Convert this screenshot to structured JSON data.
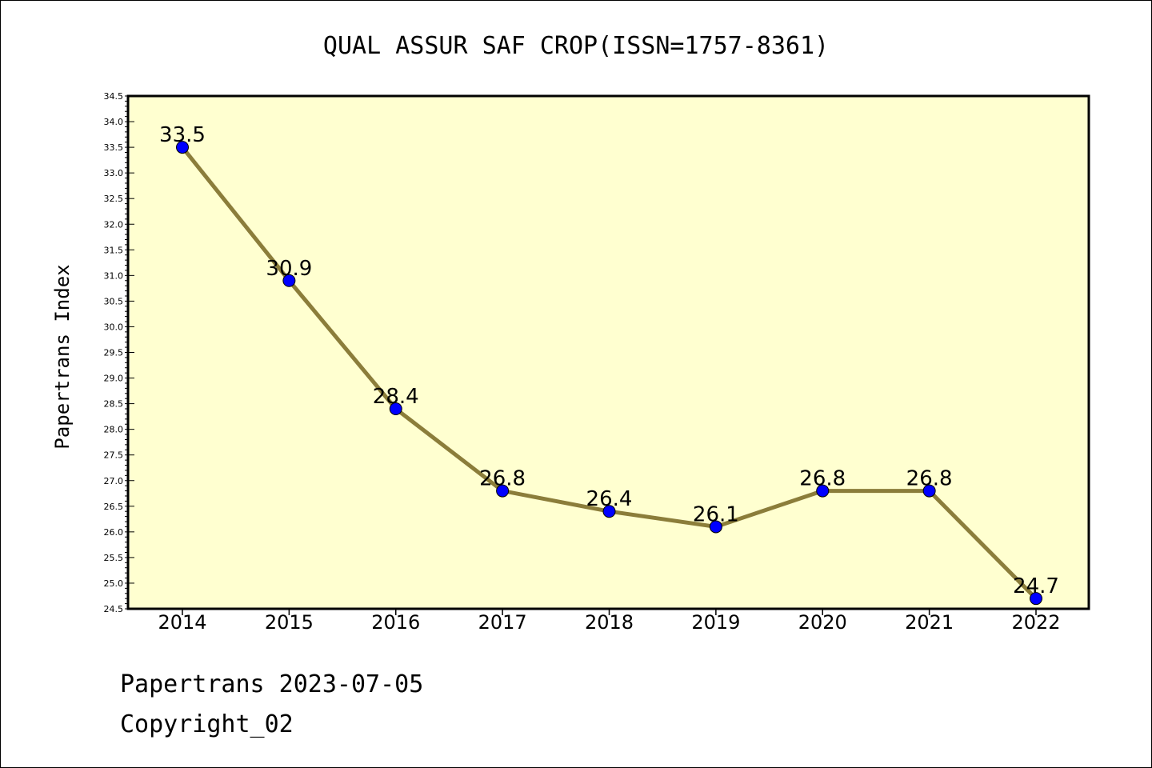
{
  "colors": {
    "plot_background": "#FFFFD0",
    "line": "#8B7D3A",
    "marker": "#0000FF",
    "axis": "#000000"
  },
  "chart_data": {
    "type": "line",
    "title": "QUAL ASSUR SAF CROP(ISSN=1757-8361)",
    "xlabel": "",
    "ylabel": "Papertrans Index",
    "categories": [
      "2014",
      "2015",
      "2016",
      "2017",
      "2018",
      "2019",
      "2020",
      "2021",
      "2022"
    ],
    "series": [
      {
        "values": [
          33.5,
          30.9,
          28.4,
          26.8,
          26.4,
          26.1,
          26.8,
          26.8,
          24.7
        ],
        "data_labels": [
          "33.5",
          "30.9",
          "28.4",
          "26.8",
          "26.4",
          "26.1",
          "26.8",
          "26.8",
          "24.7"
        ]
      }
    ],
    "ylim": [
      24.5,
      34.5
    ],
    "yticks": [
      "24.5",
      "25.0",
      "25.5",
      "26.0",
      "26.5",
      "27.0",
      "27.5",
      "28.0",
      "28.5",
      "29.0",
      "29.5",
      "30.0",
      "30.5",
      "31.0",
      "31.5",
      "32.0",
      "32.5",
      "33.0",
      "33.5",
      "34.0",
      "34.5"
    ],
    "grid": false,
    "legend": "none"
  },
  "footer": {
    "line1": "Papertrans 2023-07-05",
    "line2": "Copyright_02"
  }
}
